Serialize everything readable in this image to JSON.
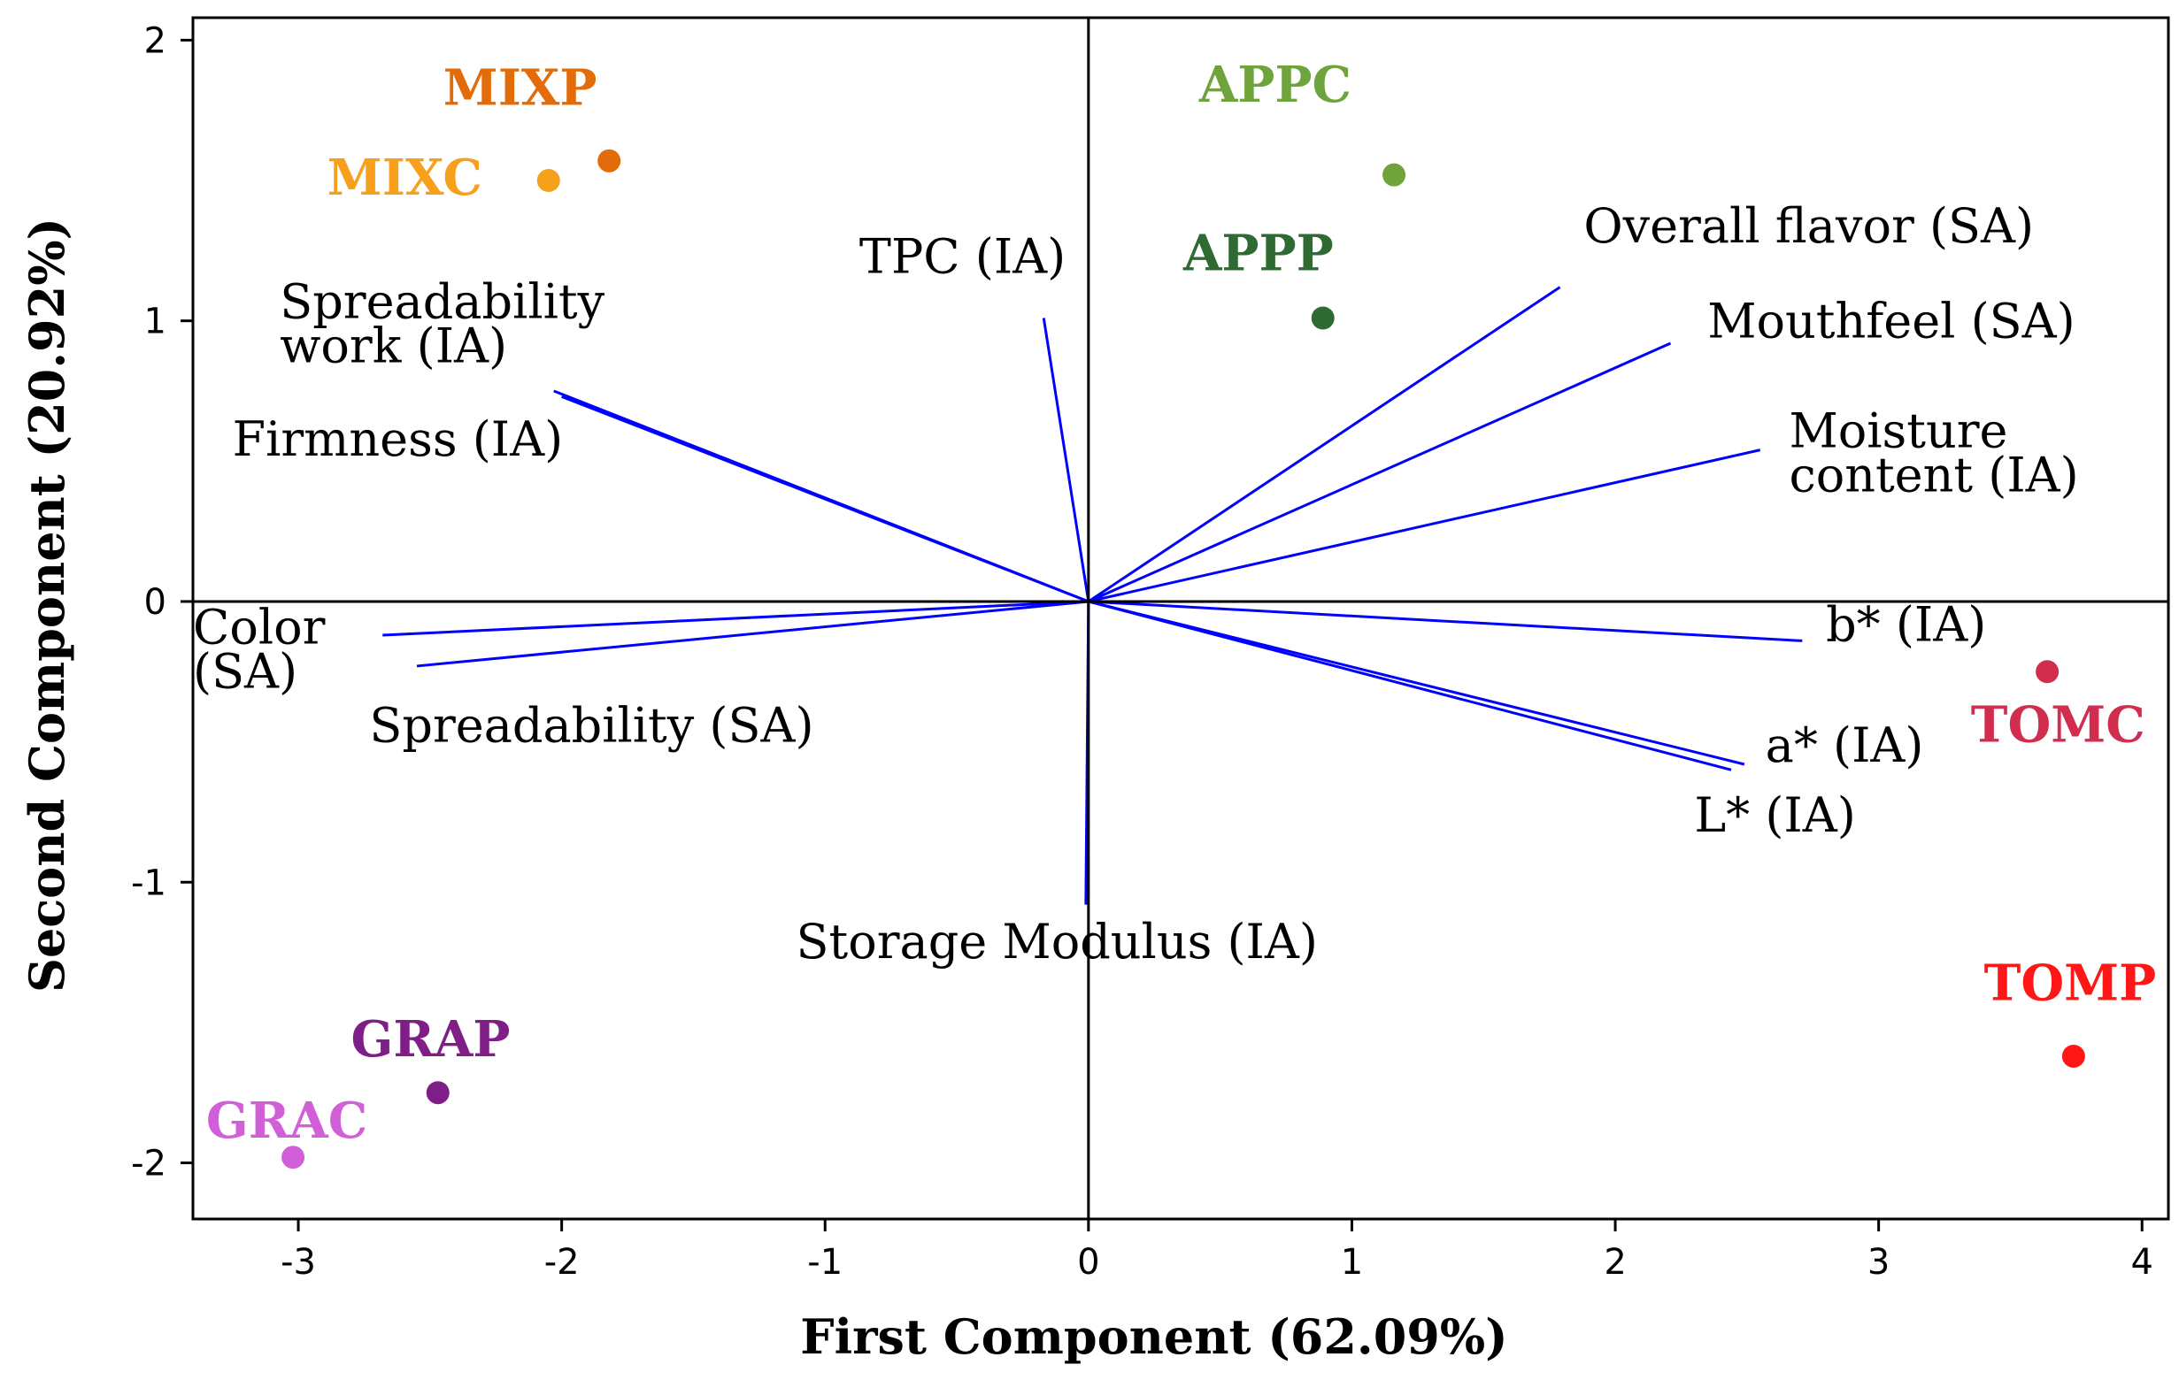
{
  "chart_data": {
    "type": "scatter",
    "subtype": "pca_biplot",
    "title": "",
    "xlabel": "First Component (62.09%)",
    "ylabel": "Second Component (20.92%)",
    "xlim": [
      -3.4,
      4.1
    ],
    "ylim": [
      -2.2,
      2.08
    ],
    "x_ticks": [
      -3,
      -2,
      -1,
      0,
      1,
      2,
      3,
      4
    ],
    "y_ticks": [
      -2,
      -1,
      0,
      1,
      2
    ],
    "grid": false,
    "zero_lines": true,
    "scores": [
      {
        "name": "MIXP",
        "x": -1.82,
        "y": 1.57,
        "color": "#E36C0A"
      },
      {
        "name": "MIXC",
        "x": -2.05,
        "y": 1.5,
        "color": "#F7A01C"
      },
      {
        "name": "APPC",
        "x": 1.16,
        "y": 1.52,
        "color": "#6FA33C"
      },
      {
        "name": "APPP",
        "x": 0.89,
        "y": 1.01,
        "color": "#2F6A33"
      },
      {
        "name": "TOMC",
        "x": 3.64,
        "y": -0.25,
        "color": "#D12D4E"
      },
      {
        "name": "TOMP",
        "x": 3.74,
        "y": -1.62,
        "color": "#FF1616"
      },
      {
        "name": "GRAP",
        "x": -2.47,
        "y": -1.75,
        "color": "#7F1E86"
      },
      {
        "name": "GRAC",
        "x": -3.02,
        "y": -1.98,
        "color": "#D160D8"
      }
    ],
    "loadings": [
      {
        "name": "Overall flavor (SA)",
        "x": 1.79,
        "y": 1.12
      },
      {
        "name": "Mouthfeel (SA)",
        "x": 2.21,
        "y": 0.92
      },
      {
        "name": "Moisture content (IA)",
        "x": 2.55,
        "y": 0.54
      },
      {
        "name": "TPC (IA)",
        "x": -0.17,
        "y": 1.01
      },
      {
        "name": "Spreadability work (IA)",
        "x": -2.03,
        "y": 0.75
      },
      {
        "name": "Firmness (IA)",
        "x": -2.0,
        "y": 0.73
      },
      {
        "name": "Color (SA)",
        "x": -2.68,
        "y": -0.12
      },
      {
        "name": "Spreadability (SA)",
        "x": -2.55,
        "y": -0.23
      },
      {
        "name": "b* (IA)",
        "x": 2.71,
        "y": -0.14
      },
      {
        "name": "a* (IA)",
        "x": 2.49,
        "y": -0.58
      },
      {
        "name": "L* (IA)",
        "x": 2.44,
        "y": -0.6
      },
      {
        "name": "Storage Modulus (IA)",
        "x": -0.01,
        "y": -1.08
      }
    ],
    "vector_color": "#0000FF",
    "vector_labels": [
      {
        "key": "flavor",
        "lines": [
          "Overall flavor (SA)"
        ],
        "x": 1.88,
        "y": 1.28
      },
      {
        "key": "mouthfeel",
        "lines": [
          "Mouthfeel (SA)"
        ],
        "x": 2.35,
        "y": 0.94
      },
      {
        "key": "moisture",
        "lines": [
          "Moisture",
          "content (IA)"
        ],
        "x": 2.66,
        "y": 0.55
      },
      {
        "key": "tpc",
        "lines": [
          "TPC (IA)"
        ],
        "x": -0.87,
        "y": 1.17
      },
      {
        "key": "sprwork",
        "lines": [
          "Spreadability",
          "work (IA)"
        ],
        "x": -3.07,
        "y": 1.01
      },
      {
        "key": "firmness",
        "lines": [
          "Firmness (IA)"
        ],
        "x": -3.25,
        "y": 0.52
      },
      {
        "key": "color",
        "lines": [
          "Color",
          "(SA)"
        ],
        "x": -3.4,
        "y": -0.15
      },
      {
        "key": "spreadability",
        "lines": [
          "Spreadability (SA)"
        ],
        "x": -2.73,
        "y": -0.5
      },
      {
        "key": "bstar",
        "lines": [
          "b* (IA)"
        ],
        "x": 2.8,
        "y": -0.14
      },
      {
        "key": "astar",
        "lines": [
          "a* (IA)"
        ],
        "x": 2.57,
        "y": -0.57
      },
      {
        "key": "lstar",
        "lines": [
          "L* (IA)"
        ],
        "x": 2.3,
        "y": -0.82
      },
      {
        "key": "storage",
        "lines": [
          "Storage Modulus (IA)"
        ],
        "x": -1.11,
        "y": -1.27
      }
    ],
    "score_label_positions": [
      {
        "name": "MIXP",
        "x": -2.45,
        "y": 1.77
      },
      {
        "name": "MIXC",
        "x": -2.89,
        "y": 1.45
      },
      {
        "name": "APPC",
        "x": 0.42,
        "y": 1.78
      },
      {
        "name": "APPP",
        "x": 0.36,
        "y": 1.18
      },
      {
        "name": "TOMC",
        "x": 3.35,
        "y": -0.5
      },
      {
        "name": "TOMP",
        "x": 3.4,
        "y": -1.42
      },
      {
        "name": "GRAP",
        "x": -2.8,
        "y": -1.62
      },
      {
        "name": "GRAC",
        "x": -3.35,
        "y": -1.91
      }
    ]
  }
}
